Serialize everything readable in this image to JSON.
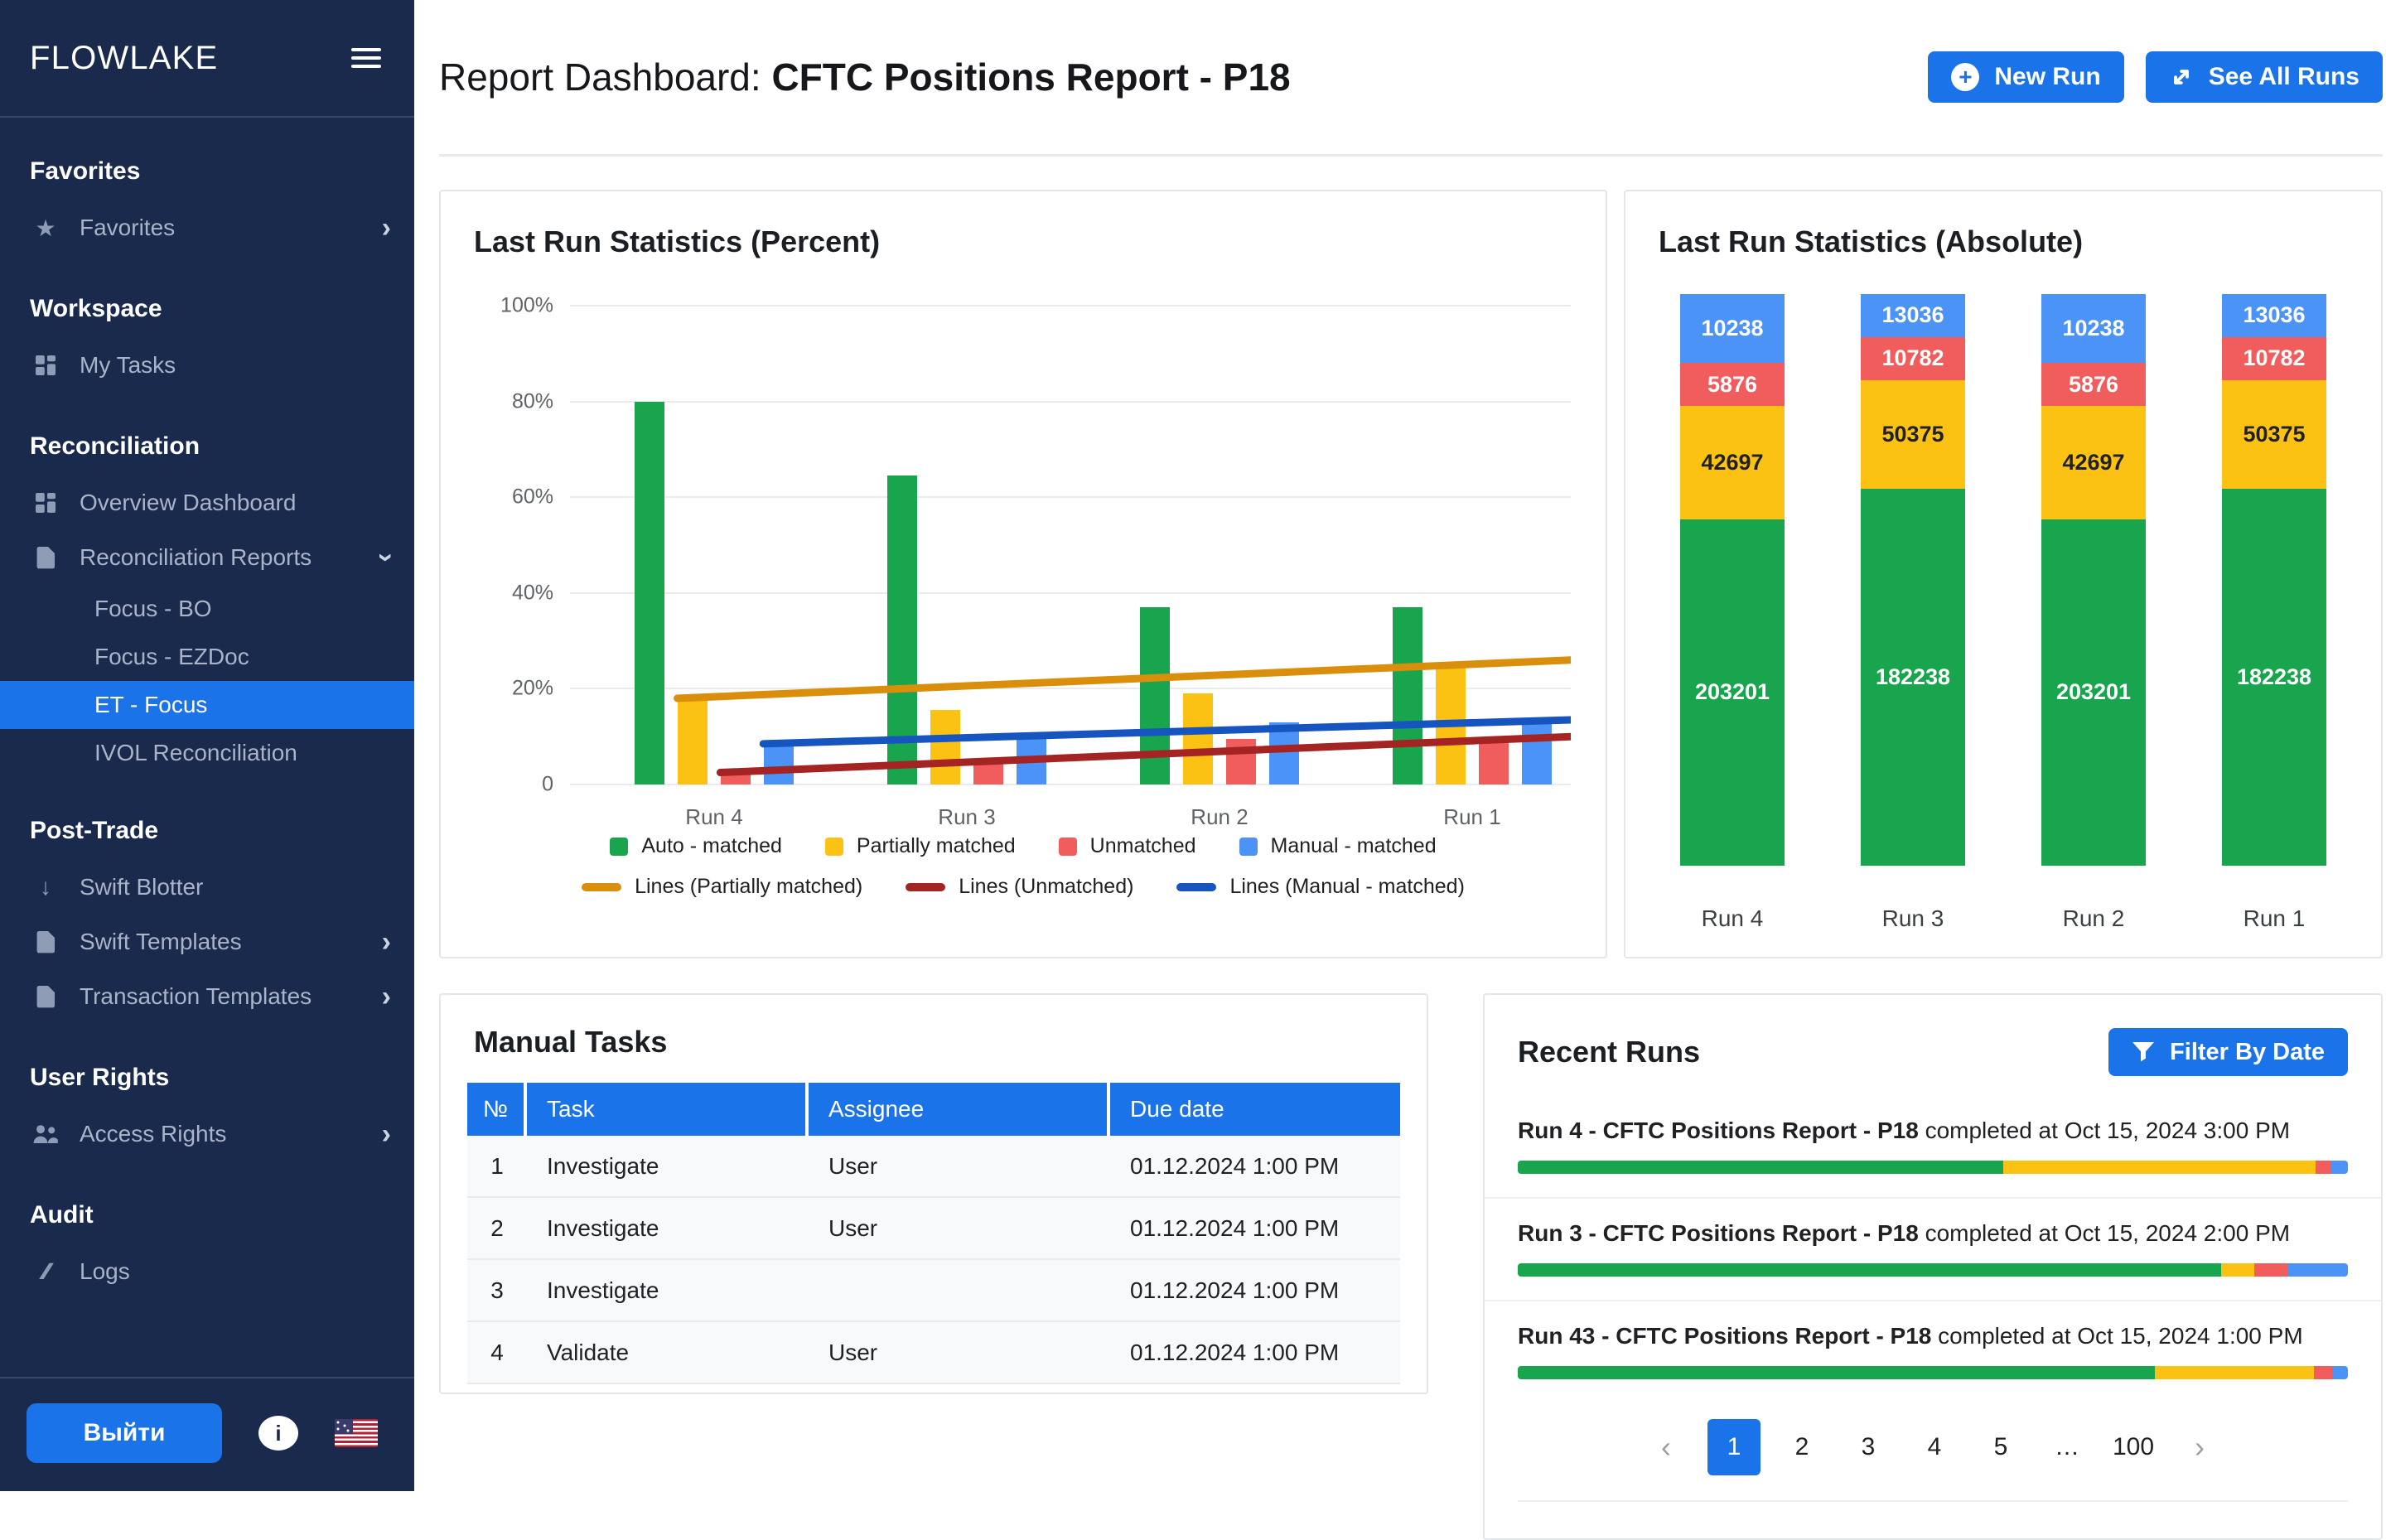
{
  "colors": {
    "accent": "#1A73E8",
    "sidebar_bg": "#1A2A4C",
    "green": "#19A44E",
    "yellow": "#FCC213",
    "red": "#F15C5C",
    "blue": "#4B93F6",
    "line_orange": "#D98E0C",
    "line_dark_red": "#A42424",
    "line_blue": "#1655C0",
    "dark_text": "#1F2125"
  },
  "sidebar": {
    "brand": "FLOWLAKE",
    "logout_label": "Выйти",
    "sections": [
      {
        "title": "Favorites",
        "items": [
          {
            "label": "Favorites",
            "icon": "star",
            "chevron": "right"
          }
        ]
      },
      {
        "title": "Workspace",
        "items": [
          {
            "label": "My Tasks",
            "icon": "grid"
          }
        ]
      },
      {
        "title": "Reconciliation",
        "items": [
          {
            "label": "Overview Dashboard",
            "icon": "grid"
          },
          {
            "label": "Reconciliation Reports",
            "icon": "doc",
            "chevron": "down",
            "children": [
              {
                "label": "Focus - BO"
              },
              {
                "label": "Focus - EZDoc"
              },
              {
                "label": "ET - Focus",
                "active": true
              },
              {
                "label": "IVOL Reconciliation"
              }
            ]
          }
        ]
      },
      {
        "title": "Post-Trade",
        "items": [
          {
            "label": "Swift Blotter",
            "icon": "arrow-down"
          },
          {
            "label": "Swift Templates",
            "icon": "doc",
            "chevron": "right"
          },
          {
            "label": "Transaction Templates",
            "icon": "doc",
            "chevron": "right"
          }
        ]
      },
      {
        "title": "User Rights",
        "items": [
          {
            "label": "Access Rights",
            "icon": "users",
            "chevron": "right"
          }
        ]
      },
      {
        "title": "Audit",
        "items": [
          {
            "label": "Logs",
            "icon": "slashes"
          }
        ]
      }
    ]
  },
  "header": {
    "title_prefix": "Report Dashboard: ",
    "title_bold": "CFTC Positions Report - P18",
    "new_run": "New Run",
    "see_all": "See All Runs"
  },
  "chart_data": [
    {
      "id": "percent",
      "type": "bar",
      "title": "Last Run Statistics (Percent)",
      "categories": [
        "Run 4",
        "Run 3",
        "Run 2",
        "Run 1"
      ],
      "series": [
        {
          "name": "Auto - matched",
          "color_key": "green",
          "values": [
            80,
            64.5,
            37,
            37
          ]
        },
        {
          "name": "Partially matched",
          "color_key": "yellow",
          "values": [
            18,
            15.5,
            19,
            25
          ]
        },
        {
          "name": "Unmatched",
          "color_key": "red",
          "values": [
            3,
            5,
            9.5,
            9.5
          ]
        },
        {
          "name": "Manual - matched",
          "color_key": "blue",
          "values": [
            8.5,
            10.5,
            13,
            13
          ]
        }
      ],
      "lines": [
        {
          "name": "Lines (Partially matched)",
          "color_key": "line_orange",
          "start": 18,
          "end": 26,
          "anchor": 1
        },
        {
          "name": "Lines (Unmatched)",
          "color_key": "line_dark_red",
          "start": 2.5,
          "end": 10,
          "anchor": 2
        },
        {
          "name": "Lines (Manual - matched)",
          "color_key": "line_blue",
          "start": 8.5,
          "end": 13.5,
          "anchor": 3
        }
      ],
      "y_ticks": [
        {
          "label": "100%",
          "value": 100
        },
        {
          "label": "80%",
          "value": 80
        },
        {
          "label": "60%",
          "value": 60
        },
        {
          "label": "40%",
          "value": 40
        },
        {
          "label": "20%",
          "value": 20
        },
        {
          "label": "0",
          "value": 0
        }
      ],
      "ylim": [
        0,
        100
      ],
      "grid": true,
      "legend_position": "bottom"
    },
    {
      "id": "absolute",
      "type": "stacked-bar",
      "title": "Last Run Statistics (Absolute)",
      "categories": [
        "Run 4",
        "Run 3",
        "Run 2",
        "Run 1"
      ],
      "segment_order_top_to_bottom": [
        "Manual - matched",
        "Unmatched",
        "Partially matched",
        "Auto - matched"
      ],
      "stacks": [
        [
          {
            "value": "10238",
            "color_key": "blue",
            "h": 12.1
          },
          {
            "value": "5876",
            "color_key": "red",
            "h": 7.5
          },
          {
            "value": "42697",
            "color_key": "yellow",
            "h": 19.8
          },
          {
            "value": "203201",
            "color_key": "green",
            "h": 60.6
          }
        ],
        [
          {
            "value": "13036",
            "color_key": "blue",
            "h": 7.5
          },
          {
            "value": "10782",
            "color_key": "red",
            "h": 7.5
          },
          {
            "value": "50375",
            "color_key": "yellow",
            "h": 19.1
          },
          {
            "value": "182238",
            "color_key": "green",
            "h": 65.9
          }
        ],
        [
          {
            "value": "10238",
            "color_key": "blue",
            "h": 12.1
          },
          {
            "value": "5876",
            "color_key": "red",
            "h": 7.5
          },
          {
            "value": "42697",
            "color_key": "yellow",
            "h": 19.8
          },
          {
            "value": "203201",
            "color_key": "green",
            "h": 60.6
          }
        ],
        [
          {
            "value": "13036",
            "color_key": "blue",
            "h": 7.5
          },
          {
            "value": "10782",
            "color_key": "red",
            "h": 7.5
          },
          {
            "value": "50375",
            "color_key": "yellow",
            "h": 19.1
          },
          {
            "value": "182238",
            "color_key": "green",
            "h": 65.9
          }
        ]
      ]
    }
  ],
  "manual_tasks": {
    "title": "Manual Tasks",
    "columns": [
      "№",
      "Task",
      "Assignee",
      "Due date"
    ],
    "rows": [
      [
        "1",
        "Investigate",
        "User",
        "01.12.2024 1:00 PM"
      ],
      [
        "2",
        "Investigate",
        "User",
        "01.12.2024 1:00 PM"
      ],
      [
        "3",
        "Investigate",
        "",
        "01.12.2024 1:00 PM"
      ],
      [
        "4",
        "Validate",
        "User",
        "01.12.2024 1:00 PM"
      ]
    ]
  },
  "recent_runs": {
    "title": "Recent Runs",
    "filter_label": "Filter By Date",
    "items": [
      {
        "bold": "Run 4 - CFTC Positions Report - P18",
        "rest": " completed at Oct 15, 2024 3:00 PM",
        "segments": [
          58.5,
          37.6,
          1.9,
          2.0
        ]
      },
      {
        "bold": "Run 3 - CFTC Positions Report - P18",
        "rest": " completed at Oct 15, 2024 2:00 PM",
        "segments": [
          84.7,
          4.0,
          4.0,
          7.3
        ]
      },
      {
        "bold": "Run 43 - CFTC Positions Report - P18",
        "rest": " completed at Oct 15, 2024 1:00 PM",
        "segments": [
          76.7,
          19.2,
          2.2,
          1.9
        ]
      }
    ],
    "pagination": {
      "prev": "‹",
      "next": "›",
      "pages": [
        "1",
        "2",
        "3",
        "4",
        "5",
        "…",
        "100"
      ],
      "active": "1"
    }
  }
}
